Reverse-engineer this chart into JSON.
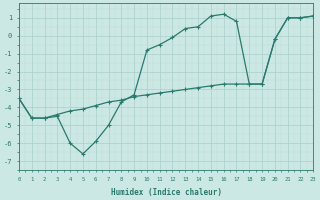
{
  "line1_x": [
    0,
    1,
    2,
    3,
    4,
    5,
    6,
    7,
    8,
    9,
    10,
    11,
    12,
    13,
    14,
    15,
    16,
    17,
    18,
    19,
    20,
    21,
    22,
    23
  ],
  "line1_y": [
    -3.5,
    -4.6,
    -4.6,
    -4.5,
    -6.0,
    -6.6,
    -5.9,
    -5.0,
    -3.7,
    -3.3,
    -0.8,
    -0.5,
    -0.1,
    0.4,
    0.5,
    1.1,
    1.2,
    0.8,
    -2.7,
    -2.7,
    -0.2,
    1.0,
    1.0,
    1.1
  ],
  "line2_x": [
    0,
    1,
    2,
    3,
    4,
    5,
    6,
    7,
    8,
    9,
    10,
    11,
    12,
    13,
    14,
    15,
    16,
    17,
    18,
    19,
    20,
    21,
    22,
    23
  ],
  "line2_y": [
    -3.5,
    -4.6,
    -4.6,
    -4.4,
    -4.2,
    -4.1,
    -3.9,
    -3.7,
    -3.6,
    -3.4,
    -3.3,
    -3.2,
    -3.1,
    -3.0,
    -2.9,
    -2.8,
    -2.7,
    -2.7,
    -2.7,
    -2.7,
    -0.2,
    1.0,
    1.0,
    1.1
  ],
  "line_color": "#2a7a6e",
  "bg_color": "#cce8e4",
  "grid_color_major": "#aacfcc",
  "grid_color_minor": "#bddbd8",
  "xlabel": "Humidex (Indice chaleur)",
  "ylim": [
    -7.5,
    1.8
  ],
  "xlim": [
    0,
    23
  ],
  "yticks": [
    -7,
    -6,
    -5,
    -4,
    -3,
    -2,
    -1,
    0,
    1
  ],
  "xticks": [
    0,
    1,
    2,
    3,
    4,
    5,
    6,
    7,
    8,
    9,
    10,
    11,
    12,
    13,
    14,
    15,
    16,
    17,
    18,
    19,
    20,
    21,
    22,
    23
  ],
  "xtick_labels": [
    "0",
    "1",
    "2",
    "3",
    "4",
    "5",
    "6",
    "7",
    "8",
    "9",
    "10",
    "11",
    "12",
    "13",
    "14",
    "15",
    "16",
    "17",
    "18",
    "19",
    "20",
    "21",
    "22",
    "23"
  ],
  "marker": "+",
  "markersize": 3.5,
  "linewidth": 0.9
}
